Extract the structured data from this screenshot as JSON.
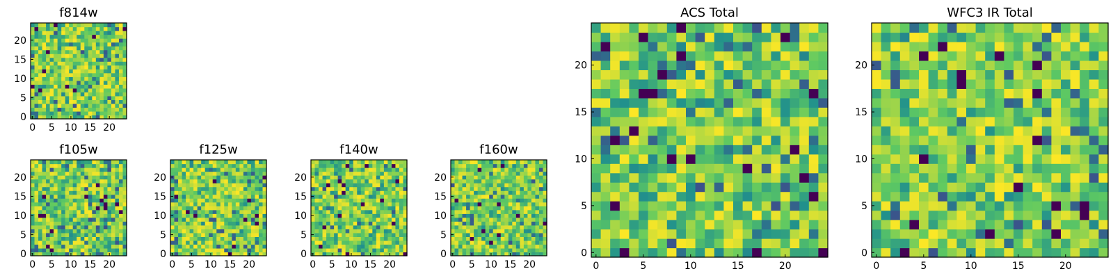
{
  "figure": {
    "background": "#ffffff"
  },
  "colormap": {
    "name": "viridis",
    "stops": [
      "#440154",
      "#3b528b",
      "#21918c",
      "#5ec962",
      "#fde725"
    ]
  },
  "chart_data": [
    {
      "type": "heatmap",
      "title": "f814w",
      "xlim": [
        0,
        24
      ],
      "ylim": [
        0,
        24
      ],
      "grid": false,
      "xticks": [
        0,
        5,
        10,
        15,
        20
      ],
      "yticks": [
        0,
        5,
        10,
        15,
        20
      ],
      "description_seed": 11
    },
    {
      "type": "heatmap",
      "title": "f105w",
      "xlim": [
        0,
        24
      ],
      "ylim": [
        0,
        24
      ],
      "grid": false,
      "xticks": [
        0,
        5,
        10,
        15,
        20
      ],
      "yticks": [
        0,
        5,
        10,
        15,
        20
      ],
      "description_seed": 23
    },
    {
      "type": "heatmap",
      "title": "f125w",
      "xlim": [
        0,
        24
      ],
      "ylim": [
        0,
        24
      ],
      "grid": false,
      "xticks": [
        0,
        5,
        10,
        15,
        20
      ],
      "yticks": [
        0,
        5,
        10,
        15,
        20
      ],
      "description_seed": 37
    },
    {
      "type": "heatmap",
      "title": "f140w",
      "xlim": [
        0,
        24
      ],
      "ylim": [
        0,
        24
      ],
      "grid": false,
      "xticks": [
        0,
        5,
        10,
        15,
        20
      ],
      "yticks": [
        0,
        5,
        10,
        15,
        20
      ],
      "description_seed": 41
    },
    {
      "type": "heatmap",
      "title": "f160w",
      "xlim": [
        0,
        24
      ],
      "ylim": [
        0,
        24
      ],
      "grid": false,
      "xticks": [
        0,
        5,
        10,
        15,
        20
      ],
      "yticks": [
        0,
        5,
        10,
        15,
        20
      ],
      "description_seed": 53
    },
    {
      "type": "heatmap",
      "title": "ACS Total",
      "xlim": [
        0,
        24
      ],
      "ylim": [
        0,
        24
      ],
      "grid": false,
      "xticks": [
        0,
        5,
        10,
        15,
        20
      ],
      "yticks": [
        0,
        5,
        10,
        15,
        20
      ],
      "description_seed": 67
    },
    {
      "type": "heatmap",
      "title": "WFC3 IR Total",
      "xlim": [
        0,
        24
      ],
      "ylim": [
        0,
        24
      ],
      "grid": false,
      "xticks": [
        0,
        5,
        10,
        15,
        20
      ],
      "yticks": [
        0,
        5,
        10,
        15,
        20
      ],
      "description_seed": 79
    }
  ]
}
